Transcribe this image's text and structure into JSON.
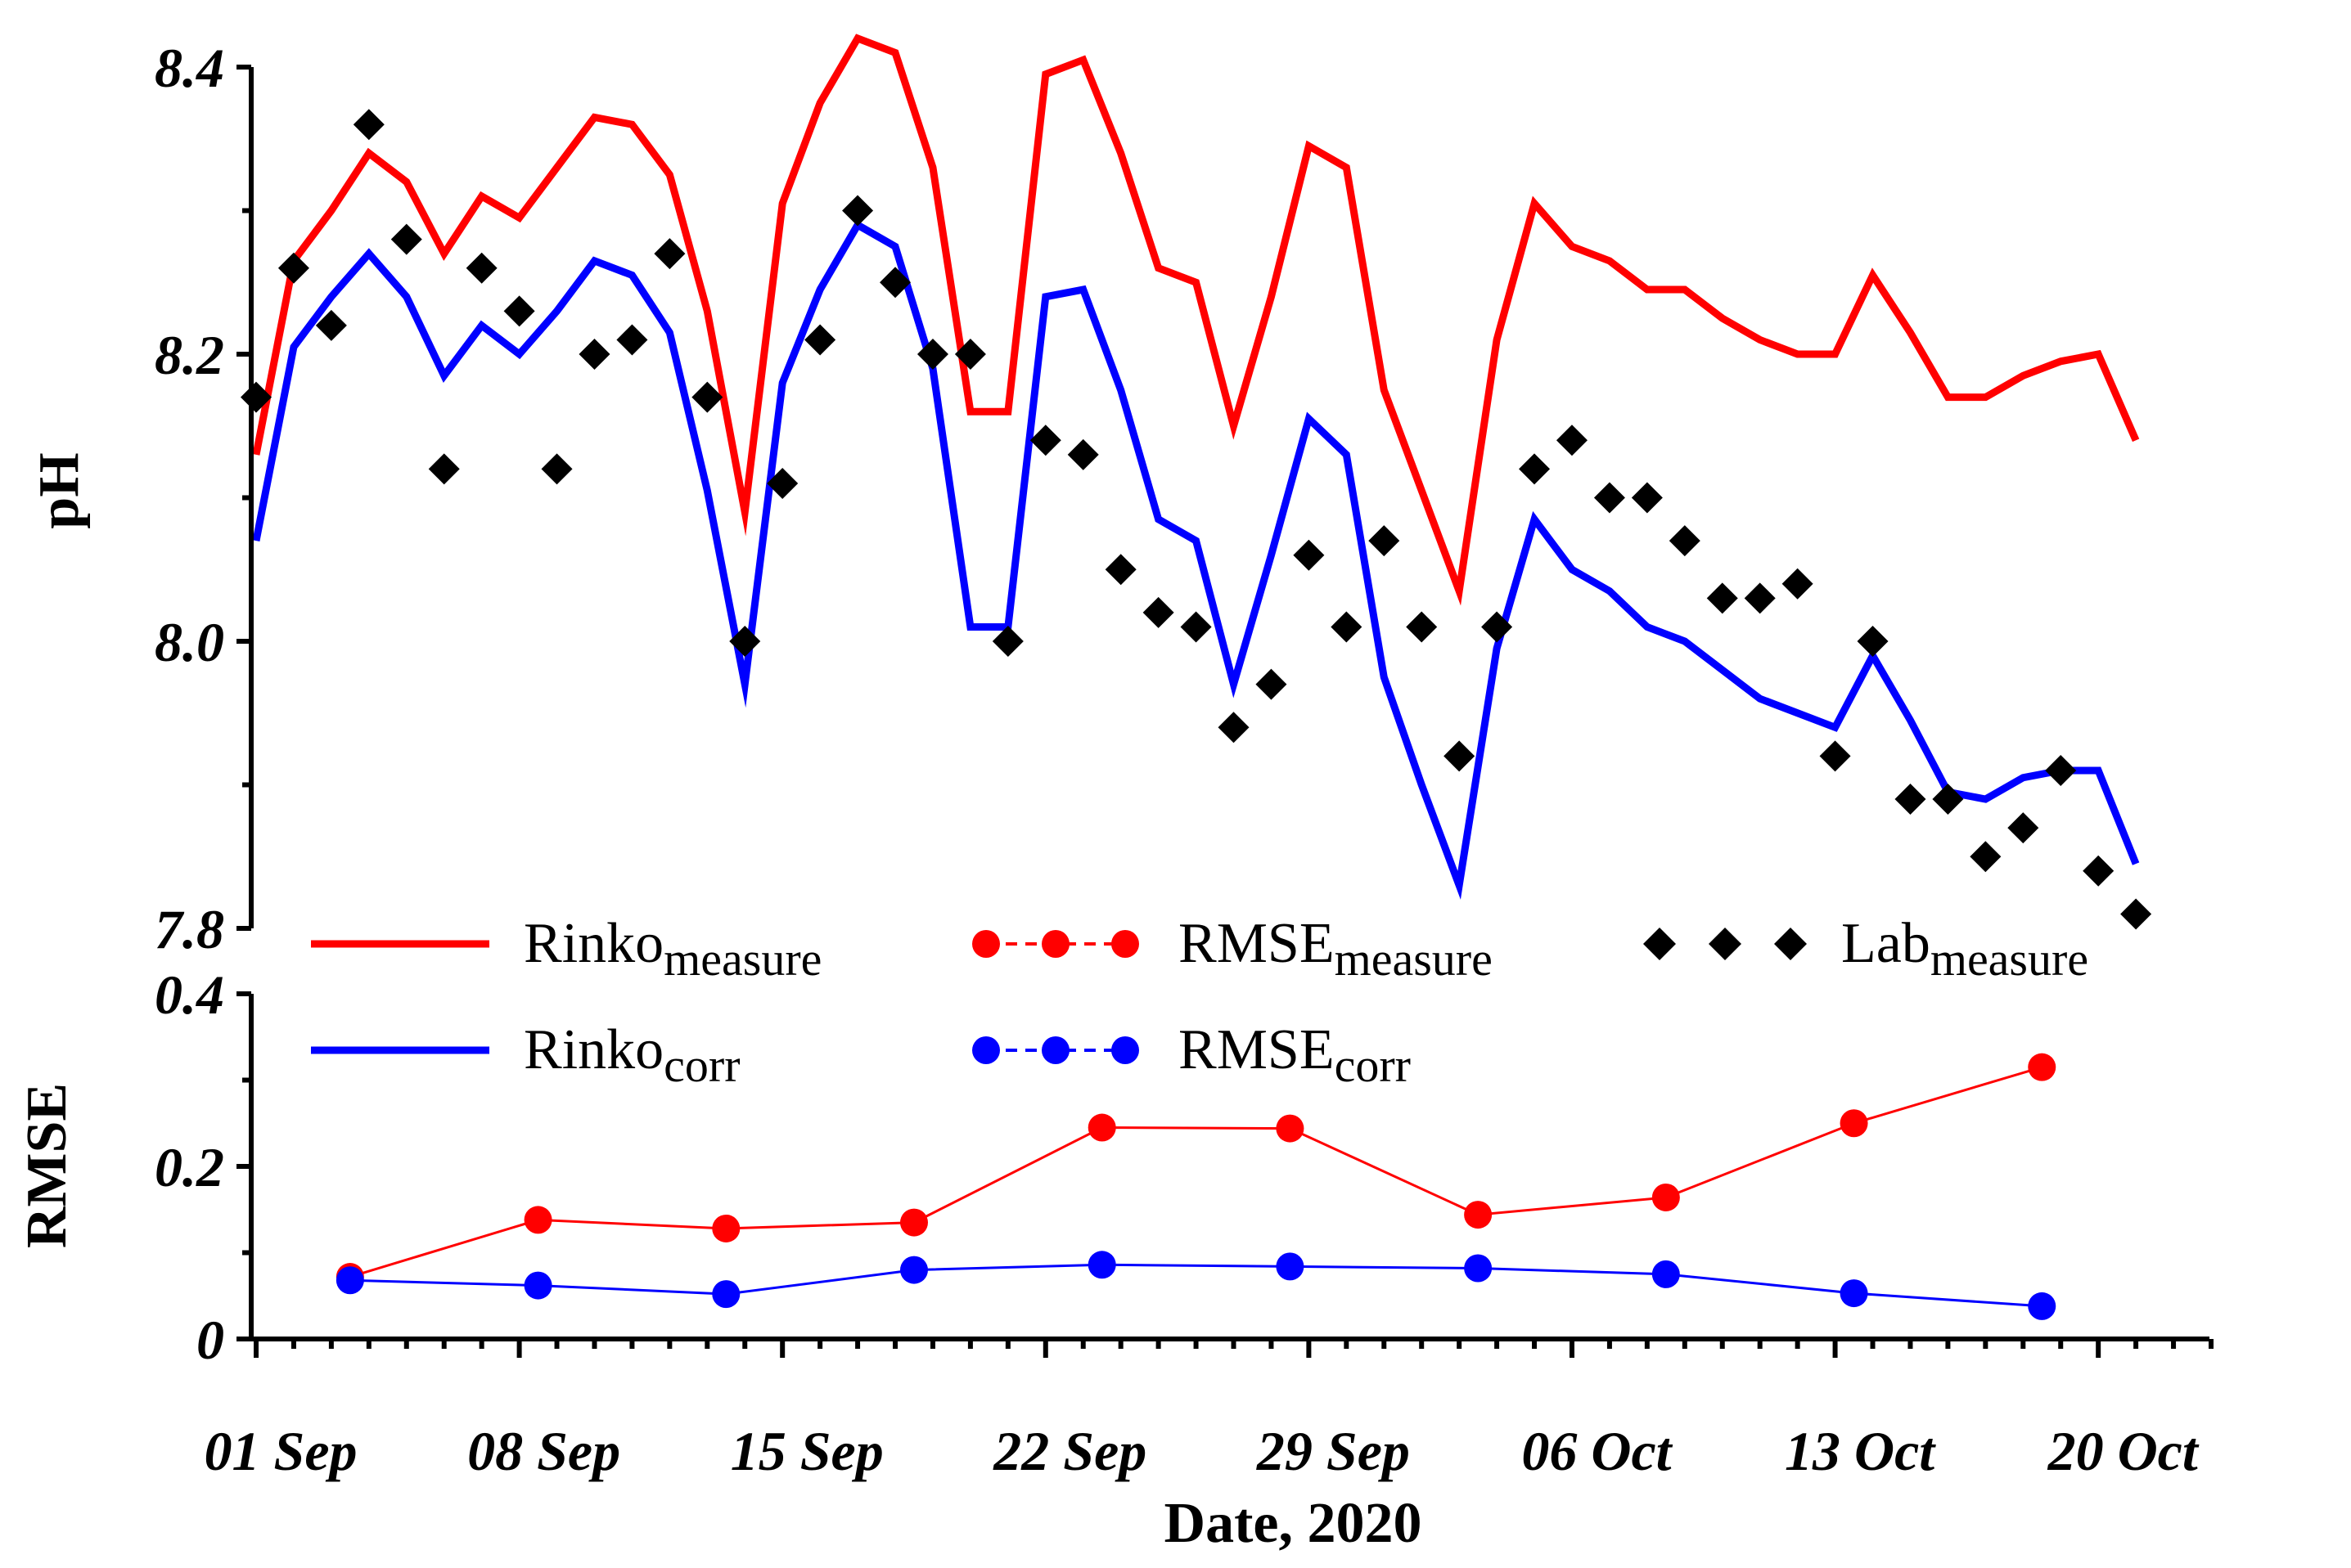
{
  "chart_data": {
    "type": "line",
    "xlabel": "Date, 2020",
    "x_ticks": [
      {
        "day": 0,
        "label": "01 Sep"
      },
      {
        "day": 7,
        "label": "08 Sep"
      },
      {
        "day": 14,
        "label": "15 Sep"
      },
      {
        "day": 21,
        "label": "22 Sep"
      },
      {
        "day": 28,
        "label": "29 Sep"
      },
      {
        "day": 35,
        "label": "06 Oct"
      },
      {
        "day": 42,
        "label": "13 Oct"
      },
      {
        "day": 49,
        "label": "20 Oct"
      }
    ],
    "xlim": [
      0,
      52
    ],
    "legend": {
      "rinko_measure": {
        "base": "Rinko",
        "sub": "measure",
        "color": "#ff0000"
      },
      "rmse_measure": {
        "base": "RMSE",
        "sub": "measure",
        "color": "#ff0000"
      },
      "lab_measure": {
        "base": "Lab",
        "sub": "measure",
        "color": "#000000"
      },
      "rinko_corr": {
        "base": "Rinko",
        "sub": "corr",
        "color": "#0000ff"
      },
      "rmse_corr": {
        "base": "RMSE",
        "sub": "corr",
        "color": "#0000ff"
      }
    },
    "panels": [
      {
        "id": "ph",
        "ylabel": "pH",
        "ylim": [
          7.8,
          8.4
        ],
        "y_ticks": [
          {
            "value": 7.8,
            "label": "7.8"
          },
          {
            "value": 8.0,
            "label": "8.0"
          },
          {
            "value": 8.2,
            "label": "8.2"
          },
          {
            "value": 8.4,
            "label": "8.4"
          }
        ],
        "y_minor": [
          7.9,
          8.1,
          8.3
        ],
        "series": [
          {
            "key": "rinko_measure",
            "name": "Rinko_measure",
            "style": "line",
            "color": "#ff0000",
            "x": [
              0,
              1,
              2,
              3,
              4,
              5,
              6,
              7,
              8,
              9,
              10,
              11,
              12,
              13,
              14,
              15,
              16,
              17,
              18,
              19,
              20,
              21,
              22,
              23,
              24,
              25,
              26,
              27,
              28,
              29,
              30,
              31,
              32,
              33,
              34,
              35,
              36,
              37,
              38,
              39,
              40,
              41,
              42,
              43,
              44,
              45,
              46,
              47,
              48,
              49,
              50
            ],
            "y": [
              8.13,
              8.265,
              8.3,
              8.34,
              8.32,
              8.27,
              8.31,
              8.295,
              8.33,
              8.365,
              8.36,
              8.325,
              8.23,
              8.09,
              8.305,
              8.375,
              8.42,
              8.41,
              8.33,
              8.16,
              8.16,
              8.395,
              8.405,
              8.34,
              8.26,
              8.25,
              8.15,
              8.24,
              8.345,
              8.33,
              8.175,
              8.105,
              8.035,
              8.21,
              8.305,
              8.275,
              8.265,
              8.245,
              8.245,
              8.225,
              8.21,
              8.2,
              8.2,
              8.255,
              8.215,
              8.17,
              8.17,
              8.185,
              8.195,
              8.2,
              8.14
            ]
          },
          {
            "key": "rinko_corr",
            "name": "Rinko_corr",
            "style": "line",
            "color": "#0000ff",
            "x": [
              0,
              1,
              2,
              3,
              4,
              5,
              6,
              7,
              8,
              9,
              10,
              11,
              12,
              13,
              14,
              15,
              16,
              17,
              18,
              19,
              20,
              21,
              22,
              23,
              24,
              25,
              26,
              27,
              28,
              29,
              30,
              31,
              32,
              33,
              34,
              35,
              36,
              37,
              38,
              39,
              40,
              41,
              42,
              43,
              44,
              45,
              46,
              47,
              48,
              49,
              50
            ],
            "y": [
              8.07,
              8.205,
              8.24,
              8.27,
              8.24,
              8.185,
              8.22,
              8.2,
              8.23,
              8.265,
              8.255,
              8.215,
              8.105,
              7.97,
              8.18,
              8.245,
              8.29,
              8.275,
              8.19,
              8.01,
              8.01,
              8.24,
              8.245,
              8.175,
              8.085,
              8.07,
              7.97,
              8.06,
              8.155,
              8.13,
              7.975,
              7.9,
              7.83,
              7.995,
              8.085,
              8.05,
              8.035,
              8.01,
              8.0,
              7.98,
              7.96,
              7.95,
              7.94,
              7.99,
              7.945,
              7.895,
              7.89,
              7.905,
              7.91,
              7.91,
              7.845
            ]
          },
          {
            "key": "lab_measure",
            "name": "Lab_measure",
            "style": "diamond",
            "color": "#000000",
            "x": [
              0,
              1,
              2,
              3,
              4,
              5,
              6,
              7,
              8,
              9,
              10,
              11,
              12,
              13,
              14,
              15,
              16,
              17,
              18,
              19,
              20,
              21,
              22,
              23,
              24,
              25,
              26,
              27,
              28,
              29,
              30,
              31,
              32,
              33,
              34,
              35,
              36,
              37,
              38,
              39,
              40,
              41,
              42,
              43,
              44,
              45,
              46,
              47,
              48,
              49,
              50
            ],
            "y": [
              8.17,
              8.26,
              8.22,
              8.36,
              8.28,
              8.12,
              8.26,
              8.23,
              8.12,
              8.2,
              8.21,
              8.27,
              8.17,
              8.0,
              8.11,
              8.21,
              8.3,
              8.25,
              8.2,
              8.2,
              8.0,
              8.14,
              8.13,
              8.05,
              8.02,
              8.01,
              7.94,
              7.97,
              8.06,
              8.01,
              8.07,
              8.01,
              7.92,
              8.01,
              8.12,
              8.14,
              8.1,
              8.1,
              8.07,
              8.03,
              8.03,
              8.04,
              7.92,
              8.0,
              7.89,
              7.89,
              7.85,
              7.87,
              7.91,
              7.84,
              7.81
            ]
          }
        ]
      },
      {
        "id": "rmse",
        "ylabel": "RMSE",
        "ylim": [
          0,
          0.4
        ],
        "y_ticks": [
          {
            "value": 0,
            "label": "0"
          },
          {
            "value": 0.2,
            "label": "0.2"
          },
          {
            "value": 0.4,
            "label": "0.4"
          }
        ],
        "y_minor": [
          0.1,
          0.3
        ],
        "series": [
          {
            "key": "rmse_measure",
            "name": "RMSE_measure",
            "style": "line-marker",
            "color": "#ff0000",
            "x": [
              2.5,
              7.5,
              12.5,
              17.5,
              22.5,
              27.5,
              32.5,
              37.5,
              42.5,
              47.5
            ],
            "y": [
              0.072,
              0.138,
              0.128,
              0.135,
              0.245,
              0.244,
              0.144,
              0.164,
              0.25,
              0.315
            ]
          },
          {
            "key": "rmse_corr",
            "name": "RMSE_corr",
            "style": "line-marker",
            "color": "#0000ff",
            "x": [
              2.5,
              7.5,
              12.5,
              17.5,
              22.5,
              27.5,
              32.5,
              37.5,
              42.5,
              47.5
            ],
            "y": [
              0.068,
              0.062,
              0.052,
              0.08,
              0.086,
              0.084,
              0.082,
              0.075,
              0.053,
              0.038
            ]
          }
        ]
      }
    ]
  }
}
